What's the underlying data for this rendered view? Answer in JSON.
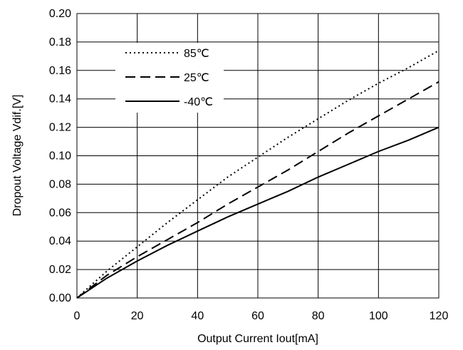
{
  "chart_data": {
    "type": "line",
    "xlabel": "Output Current Iout[mA]",
    "ylabel": "Dropout Voltage Vdif.[V]",
    "xlim": [
      0,
      120
    ],
    "ylim": [
      0,
      0.2
    ],
    "x_ticks": [
      0,
      20,
      40,
      60,
      80,
      100,
      120
    ],
    "y_ticks": [
      0,
      0.02,
      0.04,
      0.06,
      0.08,
      0.1,
      0.12,
      0.14,
      0.16,
      0.18,
      0.2
    ],
    "x_tick_labels": [
      "0",
      "20",
      "40",
      "60",
      "80",
      "100",
      "120"
    ],
    "y_tick_labels": [
      "0.00",
      "0.02",
      "0.04",
      "0.06",
      "0.08",
      "0.10",
      "0.12",
      "0.14",
      "0.16",
      "0.18",
      "0.20"
    ],
    "grid": true,
    "legend_position": "top-left",
    "series": [
      {
        "name": "85℃",
        "line_style": "dotted",
        "x": [
          0,
          10,
          20,
          30,
          40,
          50,
          60,
          70,
          80,
          90,
          100,
          110,
          120
        ],
        "y": [
          0,
          0.019,
          0.036,
          0.053,
          0.069,
          0.085,
          0.099,
          0.113,
          0.126,
          0.139,
          0.151,
          0.162,
          0.174
        ]
      },
      {
        "name": "25℃",
        "line_style": "dashed",
        "x": [
          0,
          10,
          20,
          30,
          40,
          50,
          60,
          70,
          80,
          90,
          100,
          110,
          120
        ],
        "y": [
          0,
          0.016,
          0.029,
          0.041,
          0.053,
          0.066,
          0.078,
          0.09,
          0.103,
          0.116,
          0.128,
          0.14,
          0.152
        ]
      },
      {
        "name": "-40℃",
        "line_style": "solid",
        "x": [
          0,
          10,
          20,
          30,
          40,
          50,
          60,
          70,
          80,
          90,
          100,
          110,
          120
        ],
        "y": [
          0,
          0.014,
          0.026,
          0.037,
          0.047,
          0.057,
          0.066,
          0.075,
          0.085,
          0.094,
          0.103,
          0.111,
          0.12
        ]
      }
    ]
  }
}
